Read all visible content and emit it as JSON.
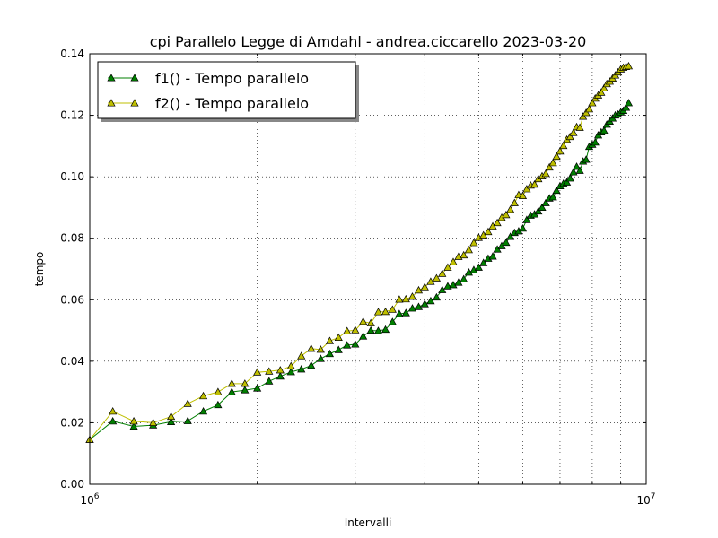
{
  "chart_data": {
    "type": "line",
    "title": "cpi Parallelo  Legge di Amdahl  -  andrea.ciccarello  2023-03-20",
    "xlabel": "Intervalli",
    "ylabel": "tempo",
    "xscale": "log",
    "xlim": [
      1000000,
      10000000
    ],
    "ylim": [
      0.0,
      0.14
    ],
    "x_major_ticks": [
      {
        "value": 1000000,
        "base": "10",
        "exp": "6"
      },
      {
        "value": 10000000,
        "base": "10",
        "exp": "7"
      }
    ],
    "y_ticks": [
      0.0,
      0.02,
      0.04,
      0.06,
      0.08,
      0.1,
      0.12,
      0.14
    ],
    "y_tick_labels": [
      "0.00",
      "0.02",
      "0.04",
      "0.06",
      "0.08",
      "0.10",
      "0.12",
      "0.14"
    ],
    "grid": true,
    "legend_position": "top-left",
    "x": [
      1000000,
      1100000,
      1200000,
      1300000,
      1400000,
      1500000,
      1600000,
      1700000,
      1800000,
      1900000,
      2000000,
      2100000,
      2200000,
      2300000,
      2400000,
      2500000,
      2600000,
      2700000,
      2800000,
      2900000,
      3000000,
      3100000,
      3200000,
      3300000,
      3400000,
      3500000,
      3600000,
      3700000,
      3800000,
      3900000,
      4000000,
      4100000,
      4200000,
      4300000,
      4400000,
      4500000,
      4600000,
      4700000,
      4800000,
      4900000,
      5000000,
      5100000,
      5200000,
      5300000,
      5400000,
      5500000,
      5600000,
      5700000,
      5800000,
      5900000,
      6000000,
      6100000,
      6200000,
      6300000,
      6400000,
      6500000,
      6600000,
      6700000,
      6800000,
      6900000,
      7000000,
      7100000,
      7200000,
      7300000,
      7400000,
      7500000,
      7600000,
      7700000,
      7800000,
      7900000,
      8000000,
      8100000,
      8200000,
      8300000,
      8400000,
      8500000,
      8600000,
      8700000,
      8800000,
      8900000,
      9000000,
      9100000,
      9200000,
      9300000
    ],
    "series": [
      {
        "name": "f1() - Tempo parallelo",
        "color": "#007f00",
        "marker_fill": "#007f00",
        "values": [
          0.0145,
          0.0205,
          0.0188,
          0.0192,
          0.0203,
          0.0206,
          0.0237,
          0.0258,
          0.03,
          0.0306,
          0.0312,
          0.0335,
          0.0351,
          0.0365,
          0.0374,
          0.0386,
          0.0408,
          0.0424,
          0.0437,
          0.0452,
          0.0455,
          0.0481,
          0.05,
          0.0499,
          0.0503,
          0.0528,
          0.0554,
          0.0557,
          0.0572,
          0.0577,
          0.0586,
          0.0596,
          0.0608,
          0.0632,
          0.0644,
          0.0648,
          0.0656,
          0.0667,
          0.0689,
          0.0697,
          0.0705,
          0.072,
          0.0734,
          0.0741,
          0.0764,
          0.0775,
          0.0786,
          0.0805,
          0.0818,
          0.0823,
          0.0832,
          0.086,
          0.0874,
          0.0878,
          0.0888,
          0.09,
          0.0915,
          0.093,
          0.0934,
          0.0955,
          0.097,
          0.0978,
          0.0982,
          0.0995,
          0.1015,
          0.1033,
          0.102,
          0.105,
          0.1056,
          0.1098,
          0.1105,
          0.1112,
          0.1135,
          0.1145,
          0.115,
          0.117,
          0.118,
          0.119,
          0.12,
          0.1203,
          0.121,
          0.1215,
          0.1225,
          0.124
        ]
      },
      {
        "name": "f2() - Tempo parallelo",
        "color": "#bfbf00",
        "marker_fill": "#bfbf00",
        "values": [
          0.0145,
          0.0237,
          0.0205,
          0.02,
          0.022,
          0.0262,
          0.0287,
          0.03,
          0.0327,
          0.0327,
          0.0364,
          0.0367,
          0.0371,
          0.0384,
          0.0417,
          0.0441,
          0.0438,
          0.0466,
          0.0477,
          0.0498,
          0.0501,
          0.0529,
          0.0524,
          0.056,
          0.0561,
          0.0568,
          0.0601,
          0.0602,
          0.061,
          0.0631,
          0.0641,
          0.0659,
          0.067,
          0.0685,
          0.0705,
          0.0723,
          0.074,
          0.0745,
          0.0762,
          0.0785,
          0.0802,
          0.081,
          0.0821,
          0.0839,
          0.085,
          0.0867,
          0.0876,
          0.0893,
          0.0915,
          0.0941,
          0.0938,
          0.096,
          0.0972,
          0.0975,
          0.0993,
          0.1002,
          0.101,
          0.1031,
          0.1045,
          0.1066,
          0.1083,
          0.1101,
          0.1121,
          0.113,
          0.1143,
          0.1162,
          0.116,
          0.1196,
          0.1208,
          0.122,
          0.124,
          0.1255,
          0.1265,
          0.1274,
          0.1288,
          0.1302,
          0.131,
          0.132,
          0.133,
          0.134,
          0.135,
          0.1355,
          0.1358,
          0.136
        ]
      }
    ]
  }
}
